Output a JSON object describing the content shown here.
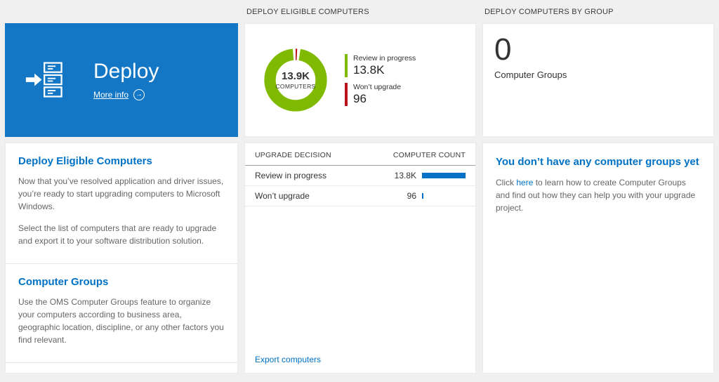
{
  "colors": {
    "accent": "#0072c6",
    "tile_blue": "#1377c6",
    "bar_blue": "#0072c6",
    "green": "#7fba00",
    "red": "#ba141a"
  },
  "headers": {
    "middle": "DEPLOY ELIGIBLE COMPUTERS",
    "right": "DEPLOY COMPUTERS BY GROUP"
  },
  "deploy_tile": {
    "title": "Deploy",
    "more_info": "More info"
  },
  "left_panel": {
    "section1": {
      "title": "Deploy Eligible Computers",
      "para1": "Now that you’ve resolved application and driver issues, you’re ready to start upgrading computers to Microsoft Windows.",
      "para2": "Select the list of computers that are ready to upgrade and export it to your software distribution solution."
    },
    "section2": {
      "title": "Computer Groups",
      "para1": "Use the OMS Computer Groups feature to organize your computers according to business area, geographic location, discipline, or any other factors you find relevant."
    }
  },
  "chart_data": {
    "type": "pie",
    "donut": true,
    "title": "DEPLOY ELIGIBLE COMPUTERS",
    "center_value": "13.9K",
    "center_label": "COMPUTERS",
    "legend_position": "right",
    "slices": [
      {
        "label": "Review in progress",
        "value": 13800,
        "display": "13.8K",
        "color": "#7fba00"
      },
      {
        "label": "Won’t upgrade",
        "value": 96,
        "display": "96",
        "color": "#ba141a"
      }
    ]
  },
  "table": {
    "columns": [
      "UPGRADE DECISION",
      "COMPUTER COUNT"
    ],
    "rows": [
      {
        "label": "Review in progress",
        "count": "13.8K",
        "value": 13800
      },
      {
        "label": "Won’t upgrade",
        "count": "96",
        "value": 96
      }
    ],
    "footer_link": "Export computers"
  },
  "groups_tile": {
    "value": "0",
    "label": "Computer Groups"
  },
  "groups_panel": {
    "title": "You don’t have any computer groups yet",
    "text_before": "Click ",
    "link_text": "here",
    "text_after": " to learn how to create Computer Groups and find out how they can help you with your upgrade project."
  }
}
